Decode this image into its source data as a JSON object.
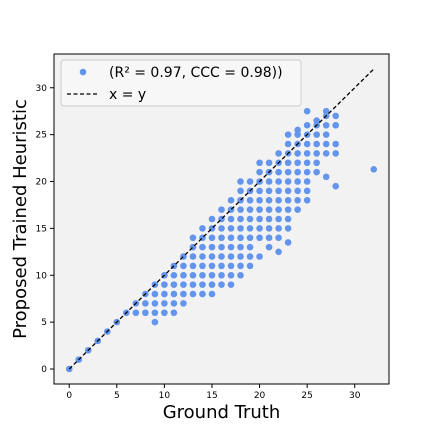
{
  "chart_data": {
    "type": "scatter",
    "title": "",
    "xlabel": "Ground Truth",
    "ylabel": "Proposed Trained Heuristic",
    "xlim": [
      -1.6,
      33.6
    ],
    "ylim": [
      -1.6,
      33.6
    ],
    "xticks": [
      0,
      5,
      10,
      15,
      20,
      25,
      30
    ],
    "yticks": [
      0,
      5,
      10,
      15,
      20,
      25,
      30
    ],
    "grid": false,
    "background": "#f2f2f2",
    "legend": {
      "placement": "top-left",
      "entries": [
        {
          "kind": "marker",
          "label": "(R² = 0.97, CCC = 0.98))"
        },
        {
          "kind": "dashed-line",
          "label": "x = y"
        }
      ]
    },
    "reference_line": {
      "name": "x = y",
      "from": [
        0,
        0
      ],
      "to": [
        32,
        32
      ],
      "color": "#000000"
    },
    "series": [
      {
        "name": "(R² = 0.97, CCC = 0.98))",
        "color": "#6495ed",
        "points": [
          [
            0,
            0
          ],
          [
            1,
            1
          ],
          [
            2,
            2
          ],
          [
            3,
            3
          ],
          [
            4,
            4
          ],
          [
            5,
            5
          ],
          [
            6,
            6
          ],
          [
            7,
            7
          ],
          [
            7,
            6
          ],
          [
            8,
            8
          ],
          [
            8,
            7
          ],
          [
            8,
            6
          ],
          [
            9,
            9
          ],
          [
            9,
            8
          ],
          [
            9,
            7
          ],
          [
            9,
            6
          ],
          [
            9,
            5
          ],
          [
            10,
            10
          ],
          [
            10,
            9
          ],
          [
            10,
            8
          ],
          [
            10,
            7
          ],
          [
            10,
            6
          ],
          [
            11,
            11
          ],
          [
            11,
            10
          ],
          [
            11,
            9
          ],
          [
            11,
            8
          ],
          [
            11,
            7
          ],
          [
            11,
            6
          ],
          [
            12,
            12
          ],
          [
            12,
            11
          ],
          [
            12,
            10
          ],
          [
            12,
            9
          ],
          [
            12,
            8
          ],
          [
            12,
            7
          ],
          [
            13,
            14
          ],
          [
            13,
            13
          ],
          [
            13,
            12
          ],
          [
            13,
            11
          ],
          [
            13,
            10
          ],
          [
            13,
            9
          ],
          [
            13,
            8
          ],
          [
            14,
            15
          ],
          [
            14,
            14
          ],
          [
            14,
            13
          ],
          [
            14,
            12
          ],
          [
            14,
            11
          ],
          [
            14,
            10
          ],
          [
            14,
            9
          ],
          [
            14,
            8
          ],
          [
            15,
            16
          ],
          [
            15,
            15
          ],
          [
            15,
            14
          ],
          [
            15,
            13
          ],
          [
            15,
            12
          ],
          [
            15,
            11
          ],
          [
            15,
            10
          ],
          [
            15,
            9
          ],
          [
            15,
            8
          ],
          [
            16,
            17
          ],
          [
            16,
            16
          ],
          [
            16,
            15
          ],
          [
            16,
            14
          ],
          [
            16,
            13
          ],
          [
            16,
            12
          ],
          [
            16,
            11
          ],
          [
            16,
            10
          ],
          [
            16,
            9
          ],
          [
            17,
            18
          ],
          [
            17,
            17
          ],
          [
            17,
            16
          ],
          [
            17,
            15
          ],
          [
            17,
            14
          ],
          [
            17,
            13
          ],
          [
            17,
            12
          ],
          [
            17,
            11
          ],
          [
            17,
            10
          ],
          [
            17,
            9
          ],
          [
            18,
            20
          ],
          [
            18,
            19
          ],
          [
            18,
            18
          ],
          [
            18,
            17
          ],
          [
            18,
            16
          ],
          [
            18,
            15
          ],
          [
            18,
            14
          ],
          [
            18,
            13
          ],
          [
            18,
            12
          ],
          [
            18,
            11
          ],
          [
            18,
            10
          ],
          [
            19,
            20
          ],
          [
            19,
            19
          ],
          [
            19,
            18
          ],
          [
            19,
            17
          ],
          [
            19,
            16
          ],
          [
            19,
            15
          ],
          [
            19,
            14
          ],
          [
            19,
            13
          ],
          [
            19,
            12
          ],
          [
            19,
            11
          ],
          [
            20,
            22
          ],
          [
            20,
            21
          ],
          [
            20,
            20
          ],
          [
            20,
            19
          ],
          [
            20,
            18
          ],
          [
            20,
            17
          ],
          [
            20,
            16
          ],
          [
            20,
            15
          ],
          [
            20,
            14
          ],
          [
            20,
            12
          ],
          [
            21,
            22
          ],
          [
            21,
            21
          ],
          [
            21,
            20
          ],
          [
            21,
            19
          ],
          [
            21,
            18
          ],
          [
            21,
            17
          ],
          [
            21,
            16
          ],
          [
            21,
            15
          ],
          [
            21,
            14
          ],
          [
            21,
            13
          ],
          [
            22,
            23
          ],
          [
            22,
            22
          ],
          [
            22,
            21
          ],
          [
            22,
            20
          ],
          [
            22,
            19
          ],
          [
            22,
            18
          ],
          [
            22,
            17
          ],
          [
            22,
            16
          ],
          [
            22,
            15
          ],
          [
            22,
            14
          ],
          [
            22,
            12.5
          ],
          [
            23,
            25
          ],
          [
            23,
            24
          ],
          [
            23,
            23
          ],
          [
            23,
            22
          ],
          [
            23,
            21
          ],
          [
            23,
            20
          ],
          [
            23,
            19
          ],
          [
            23,
            18
          ],
          [
            23,
            17
          ],
          [
            23,
            16
          ],
          [
            23,
            15
          ],
          [
            23,
            13.5
          ],
          [
            24,
            25.5
          ],
          [
            24,
            25
          ],
          [
            24,
            24
          ],
          [
            24,
            23
          ],
          [
            24,
            22
          ],
          [
            24,
            21
          ],
          [
            24,
            20
          ],
          [
            24,
            19
          ],
          [
            24,
            18
          ],
          [
            24,
            17
          ],
          [
            25,
            27.5
          ],
          [
            25,
            26
          ],
          [
            25,
            25
          ],
          [
            25,
            24
          ],
          [
            25,
            23
          ],
          [
            25,
            22
          ],
          [
            25,
            21
          ],
          [
            25,
            20
          ],
          [
            25,
            19
          ],
          [
            25,
            18
          ],
          [
            26,
            26.5
          ],
          [
            26,
            26
          ],
          [
            26,
            25
          ],
          [
            26,
            24
          ],
          [
            26,
            23
          ],
          [
            26,
            22
          ],
          [
            26,
            21
          ],
          [
            27,
            27.5
          ],
          [
            27,
            27
          ],
          [
            27,
            26
          ],
          [
            27,
            25
          ],
          [
            27,
            24
          ],
          [
            27,
            23
          ],
          [
            27,
            20.5
          ],
          [
            28,
            27
          ],
          [
            28,
            26
          ],
          [
            28,
            24
          ],
          [
            28,
            23
          ],
          [
            28,
            19.5
          ],
          [
            32,
            21.3
          ]
        ]
      }
    ]
  }
}
